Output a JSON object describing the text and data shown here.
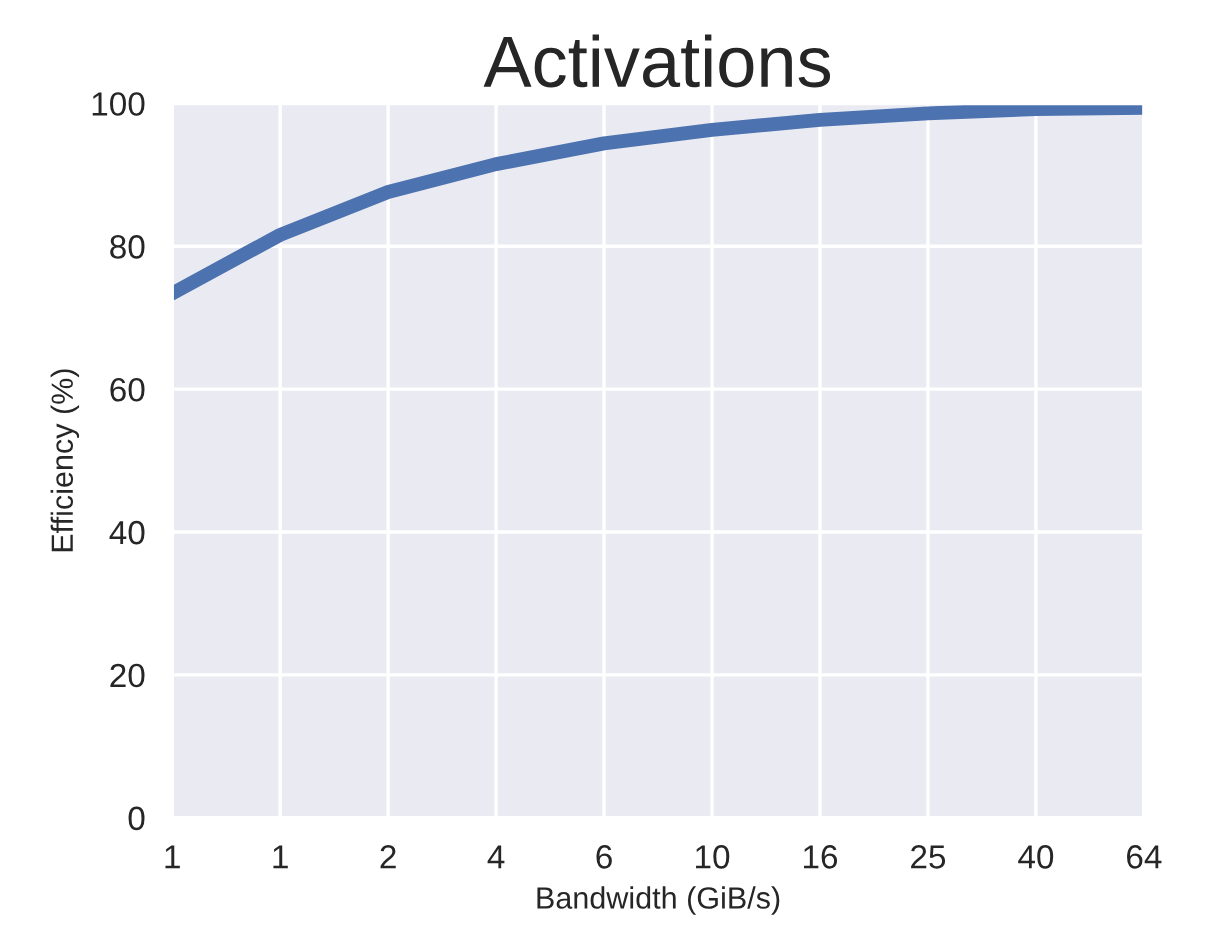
{
  "chart_data": {
    "type": "line",
    "title": "Activations",
    "xlabel": "Bandwidth (GiB/s)",
    "ylabel": "Efficiency (%)",
    "categories": [
      "1",
      "1",
      "2",
      "4",
      "6",
      "10",
      "16",
      "25",
      "40",
      "64"
    ],
    "series": [
      {
        "color": "#4c72b0",
        "values": [
          73.4,
          81.6,
          87.6,
          91.5,
          94.4,
          96.3,
          97.7,
          98.6,
          99.2,
          99.4
        ]
      }
    ],
    "ylim": [
      0,
      100
    ],
    "yticks": [
      0,
      20,
      40,
      60,
      80,
      100
    ],
    "grid": true,
    "line_style": "solid",
    "marker": "none"
  }
}
